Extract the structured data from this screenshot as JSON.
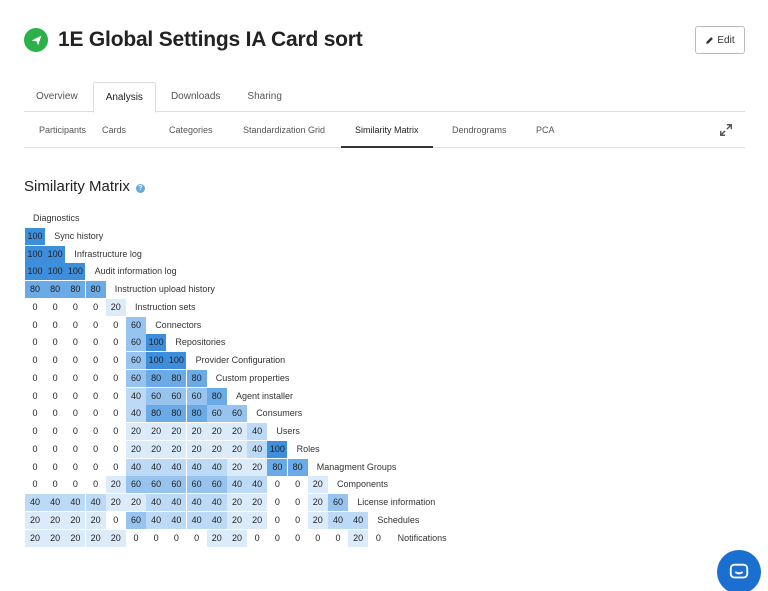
{
  "header": {
    "title": "1E Global Settings IA Card sort",
    "edit_label": "Edit"
  },
  "main_tabs": [
    "Overview",
    "Analysis",
    "Downloads",
    "Sharing"
  ],
  "main_tab_active": 1,
  "sub_tabs": [
    "Participants",
    "Cards",
    "Categories",
    "Standardization Grid",
    "Similarity Matrix",
    "Dendrograms",
    "PCA"
  ],
  "sub_tab_active": 4,
  "section": {
    "title": "Similarity Matrix",
    "help": "?"
  },
  "matrix": {
    "labels": [
      "Diagnostics",
      "Sync history",
      "Infrastructure log",
      "Audit information log",
      "Instruction upload history",
      "Instruction sets",
      "Connectors",
      "Repositories",
      "Provider Configuration",
      "Custom properties",
      "Agent installer",
      "Consumers",
      "Users",
      "Roles",
      "Managment Groups",
      "Components",
      "License information",
      "Schedules",
      "Notifications"
    ],
    "rows": [
      [],
      [
        100
      ],
      [
        100,
        100
      ],
      [
        100,
        100,
        100
      ],
      [
        80,
        80,
        80,
        80
      ],
      [
        0,
        0,
        0,
        0,
        20
      ],
      [
        0,
        0,
        0,
        0,
        0,
        60
      ],
      [
        0,
        0,
        0,
        0,
        0,
        60,
        100
      ],
      [
        0,
        0,
        0,
        0,
        0,
        60,
        100,
        100
      ],
      [
        0,
        0,
        0,
        0,
        0,
        60,
        80,
        80,
        80
      ],
      [
        0,
        0,
        0,
        0,
        0,
        40,
        60,
        60,
        60,
        80
      ],
      [
        0,
        0,
        0,
        0,
        0,
        40,
        80,
        80,
        80,
        60,
        60
      ],
      [
        0,
        0,
        0,
        0,
        0,
        20,
        20,
        20,
        20,
        20,
        20,
        40
      ],
      [
        0,
        0,
        0,
        0,
        0,
        20,
        20,
        20,
        20,
        20,
        20,
        40,
        100
      ],
      [
        0,
        0,
        0,
        0,
        0,
        40,
        40,
        40,
        40,
        40,
        20,
        20,
        80,
        80
      ],
      [
        0,
        0,
        0,
        0,
        20,
        60,
        60,
        60,
        60,
        60,
        40,
        40,
        0,
        0,
        20
      ],
      [
        40,
        40,
        40,
        40,
        20,
        20,
        40,
        40,
        40,
        40,
        20,
        20,
        0,
        0,
        20,
        60
      ],
      [
        20,
        20,
        20,
        20,
        0,
        60,
        40,
        40,
        40,
        40,
        20,
        20,
        0,
        0,
        20,
        40,
        40
      ],
      [
        20,
        20,
        20,
        20,
        20,
        0,
        0,
        0,
        0,
        20,
        20,
        0,
        0,
        0,
        0,
        0,
        20,
        0
      ]
    ]
  },
  "colors": {
    "v100": "#3d8fdd",
    "v80": "#6aaae6",
    "v60": "#96c4ef",
    "v40": "#bcd9f5",
    "v20": "#dcebfa",
    "accent_green": "#2bb04a",
    "chat_blue": "#1b6fd1"
  },
  "icons": {
    "logo": "send-arrow-icon",
    "edit": "pencil-icon",
    "expand": "expand-arrows-icon",
    "help": "question-circle-icon",
    "chat": "chat-bubble-icon"
  }
}
